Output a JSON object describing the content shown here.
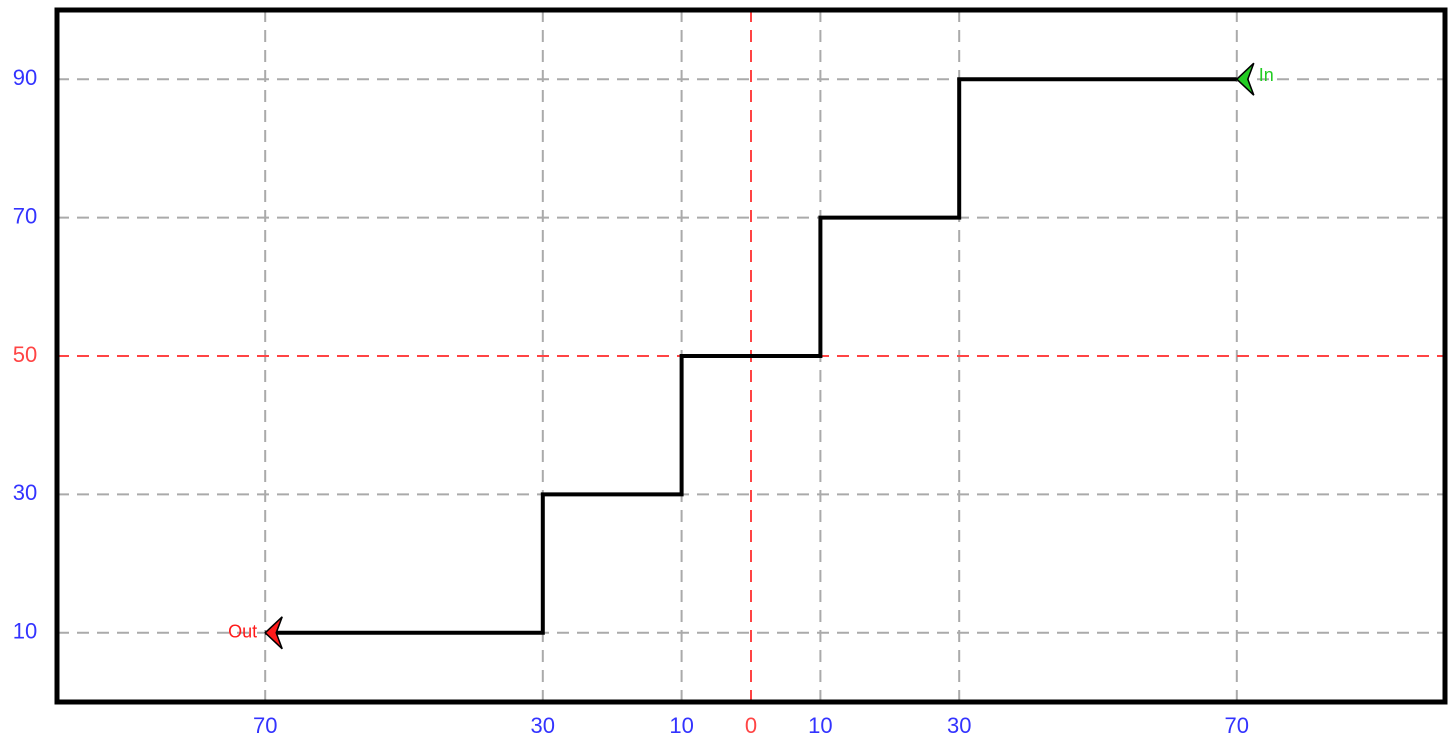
{
  "chart_data": {
    "type": "line",
    "x": [
      70,
      30,
      30,
      10,
      10,
      -10,
      -10,
      -30,
      -30,
      -70
    ],
    "series": [
      {
        "color": "#000000",
        "values": [
          90,
          90,
          70,
          70,
          50,
          50,
          30,
          30,
          10,
          10
        ]
      }
    ],
    "start_label": "In",
    "start_color": "#22cc22",
    "end_label": "Out",
    "end_color": "#ff1a1a",
    "xlim": [
      -100,
      100
    ],
    "xticks": [
      {
        "value": -70,
        "label": "70"
      },
      {
        "value": -30,
        "label": "30"
      },
      {
        "value": -10,
        "label": "10"
      },
      0,
      10,
      30,
      70
    ],
    "ylim": [
      0,
      100
    ],
    "yticks": [
      10,
      30,
      50,
      70,
      90
    ],
    "grid": true,
    "reference_lines": {
      "x": 0,
      "y": 50,
      "color": "#ff4444"
    },
    "tick_color": "#3333ff"
  }
}
